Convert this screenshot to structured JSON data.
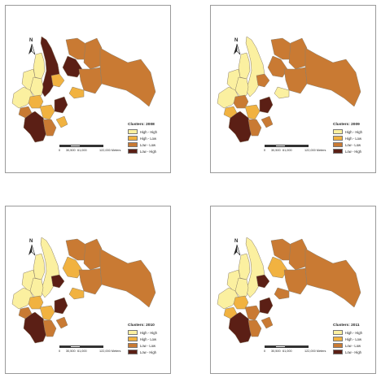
{
  "colors": {
    "hh": "#fbf0a0",
    "hl": "#f1b240",
    "ll": "#c97a33",
    "lh": "#5b1f15",
    "outline": "#8b7e6a"
  },
  "panels": [
    {
      "title": "Clusters: 2008",
      "regions": {
        "r1": "lh",
        "r2": "hh",
        "r3": "hh",
        "r4": "hh",
        "r5": "hh",
        "r6": "hl",
        "r7": "lh",
        "r8": "hl",
        "r9": "ll",
        "r10": "ll",
        "r11": "ll",
        "r12": "ll",
        "r13": "hl",
        "r14": "lh",
        "r15": "lh",
        "r16": "hl",
        "r17": "ll",
        "r18": "hl",
        "r19": "ll"
      }
    },
    {
      "title": "Clusters: 2009",
      "regions": {
        "r1": "hh",
        "r2": "hh",
        "r3": "hh",
        "r4": "hh",
        "r5": "hh",
        "r6": "ll",
        "r7": "ll",
        "r8": "ll",
        "r9": "ll",
        "r10": "ll",
        "r11": "ll",
        "r12": "ll",
        "r13": "hh",
        "r14": "lh",
        "r15": "lh",
        "r16": "hl",
        "r17": "ll",
        "r18": "ll",
        "r19": "hl"
      }
    },
    {
      "title": "Clusters: 2010",
      "regions": {
        "r1": "hh",
        "r2": "hh",
        "r3": "hh",
        "r4": "hh",
        "r5": "hh",
        "r6": "hl",
        "r7": "hl",
        "r8": "lh",
        "r9": "ll",
        "r10": "ll",
        "r11": "ll",
        "r12": "ll",
        "r13": "hl",
        "r14": "lh",
        "r15": "lh",
        "r16": "hl",
        "r17": "ll",
        "r18": "ll",
        "r19": "ll"
      }
    },
    {
      "title": "Clusters: 2011",
      "regions": {
        "r1": "hh",
        "r2": "hh",
        "r3": "hh",
        "r4": "hh",
        "r5": "hh",
        "r6": "hl",
        "r7": "hl",
        "r8": "lh",
        "r9": "ll",
        "r10": "ll",
        "r11": "ll",
        "r12": "ll",
        "r13": "ll",
        "r14": "lh",
        "r15": "lh",
        "r16": "ll",
        "r17": "ll",
        "r18": "ll",
        "r19": "hl"
      }
    }
  ],
  "legend": {
    "items": [
      {
        "key": "hh",
        "label": "High - High"
      },
      {
        "key": "hl",
        "label": "High - Low"
      },
      {
        "key": "ll",
        "label": "Low - Low"
      },
      {
        "key": "lh",
        "label": "Low - High"
      }
    ]
  },
  "scale": {
    "ticks": [
      "0",
      "30,500",
      "61,000",
      "122,000 Meters"
    ]
  },
  "north_label": "N"
}
